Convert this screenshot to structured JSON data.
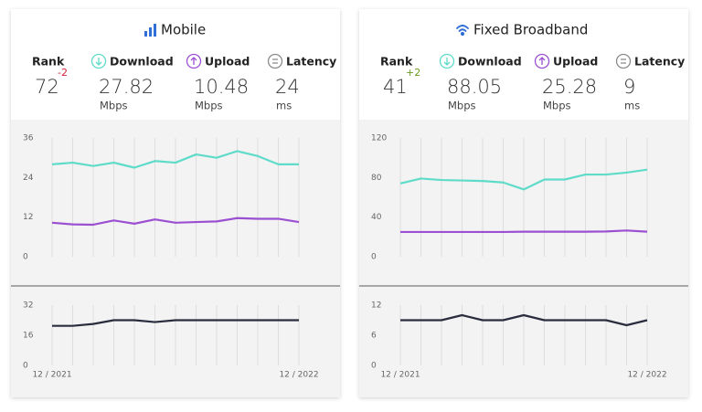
{
  "panels": [
    {
      "title": "Mobile",
      "rank": {
        "label": "Rank",
        "value": 72,
        "change": -2,
        "change_color": "#d2233c"
      },
      "metrics": [
        {
          "label": "Download",
          "value": 27.82,
          "unit": "Mbps"
        },
        {
          "label": "Upload",
          "value": 10.48,
          "unit": "Mbps"
        },
        {
          "label": "Latency",
          "value": 24,
          "unit": "ms"
        }
      ]
    },
    {
      "title": "Fixed Broadband",
      "rank": {
        "label": "Rank",
        "value": 41,
        "change": "+2",
        "change_color": "#6a9a1f"
      },
      "metrics": [
        {
          "label": "Download",
          "value": 88.05,
          "unit": "Mbps"
        },
        {
          "label": "Upload",
          "value": 25.28,
          "unit": "Mbps"
        },
        {
          "label": "Latency",
          "value": 9,
          "unit": "ms"
        }
      ]
    }
  ],
  "chart_data": [
    {
      "type": "line",
      "ylim": [
        0,
        36
      ],
      "yticks": [
        0,
        12,
        24,
        36
      ],
      "grid": true,
      "series": [
        {
          "name": "Download",
          "color": "#5fdbc9",
          "values": [
            28,
            28.5,
            27.5,
            28.5,
            27,
            29,
            28.5,
            31,
            30,
            32,
            30.5,
            28,
            28
          ]
        },
        {
          "name": "Upload",
          "color": "#9b4fd1",
          "values": [
            10.3,
            9.8,
            9.7,
            11,
            10,
            11.3,
            10.3,
            10.5,
            10.7,
            11.7,
            11.5,
            11.5,
            10.5
          ]
        }
      ]
    },
    {
      "type": "line",
      "ylim": [
        0,
        32
      ],
      "yticks": [
        0,
        16,
        32
      ],
      "grid": true,
      "categories": [
        "12 / 2021",
        null,
        null,
        null,
        null,
        null,
        null,
        null,
        null,
        null,
        null,
        null,
        "12 / 2022"
      ],
      "series": [
        {
          "name": "Latency",
          "color": "#2a2d3e",
          "values": [
            21,
            21,
            22,
            24,
            24,
            23,
            24,
            24,
            24,
            24,
            24,
            24,
            24
          ]
        }
      ]
    },
    {
      "type": "line",
      "ylim": [
        0,
        120
      ],
      "yticks": [
        0,
        40,
        80,
        120
      ],
      "grid": true,
      "series": [
        {
          "name": "Download",
          "color": "#5fdbc9",
          "values": [
            74,
            79,
            77.5,
            77,
            76.5,
            75,
            68,
            78,
            78,
            83,
            83,
            85,
            88
          ]
        },
        {
          "name": "Upload",
          "color": "#9b4fd1",
          "values": [
            25,
            25,
            25,
            25,
            25,
            25,
            25.3,
            25.3,
            25.3,
            25.3,
            25.5,
            26.5,
            25.3
          ]
        }
      ]
    },
    {
      "type": "line",
      "ylim": [
        0,
        12
      ],
      "yticks": [
        0,
        6,
        12
      ],
      "grid": true,
      "categories": [
        "12 / 2021",
        null,
        null,
        null,
        null,
        null,
        null,
        null,
        null,
        null,
        null,
        null,
        "12 / 2022"
      ],
      "series": [
        {
          "name": "Latency",
          "color": "#2a2d3e",
          "values": [
            9,
            9,
            9,
            10,
            9,
            9,
            10,
            9,
            9,
            9,
            9,
            8,
            9
          ]
        }
      ]
    }
  ]
}
